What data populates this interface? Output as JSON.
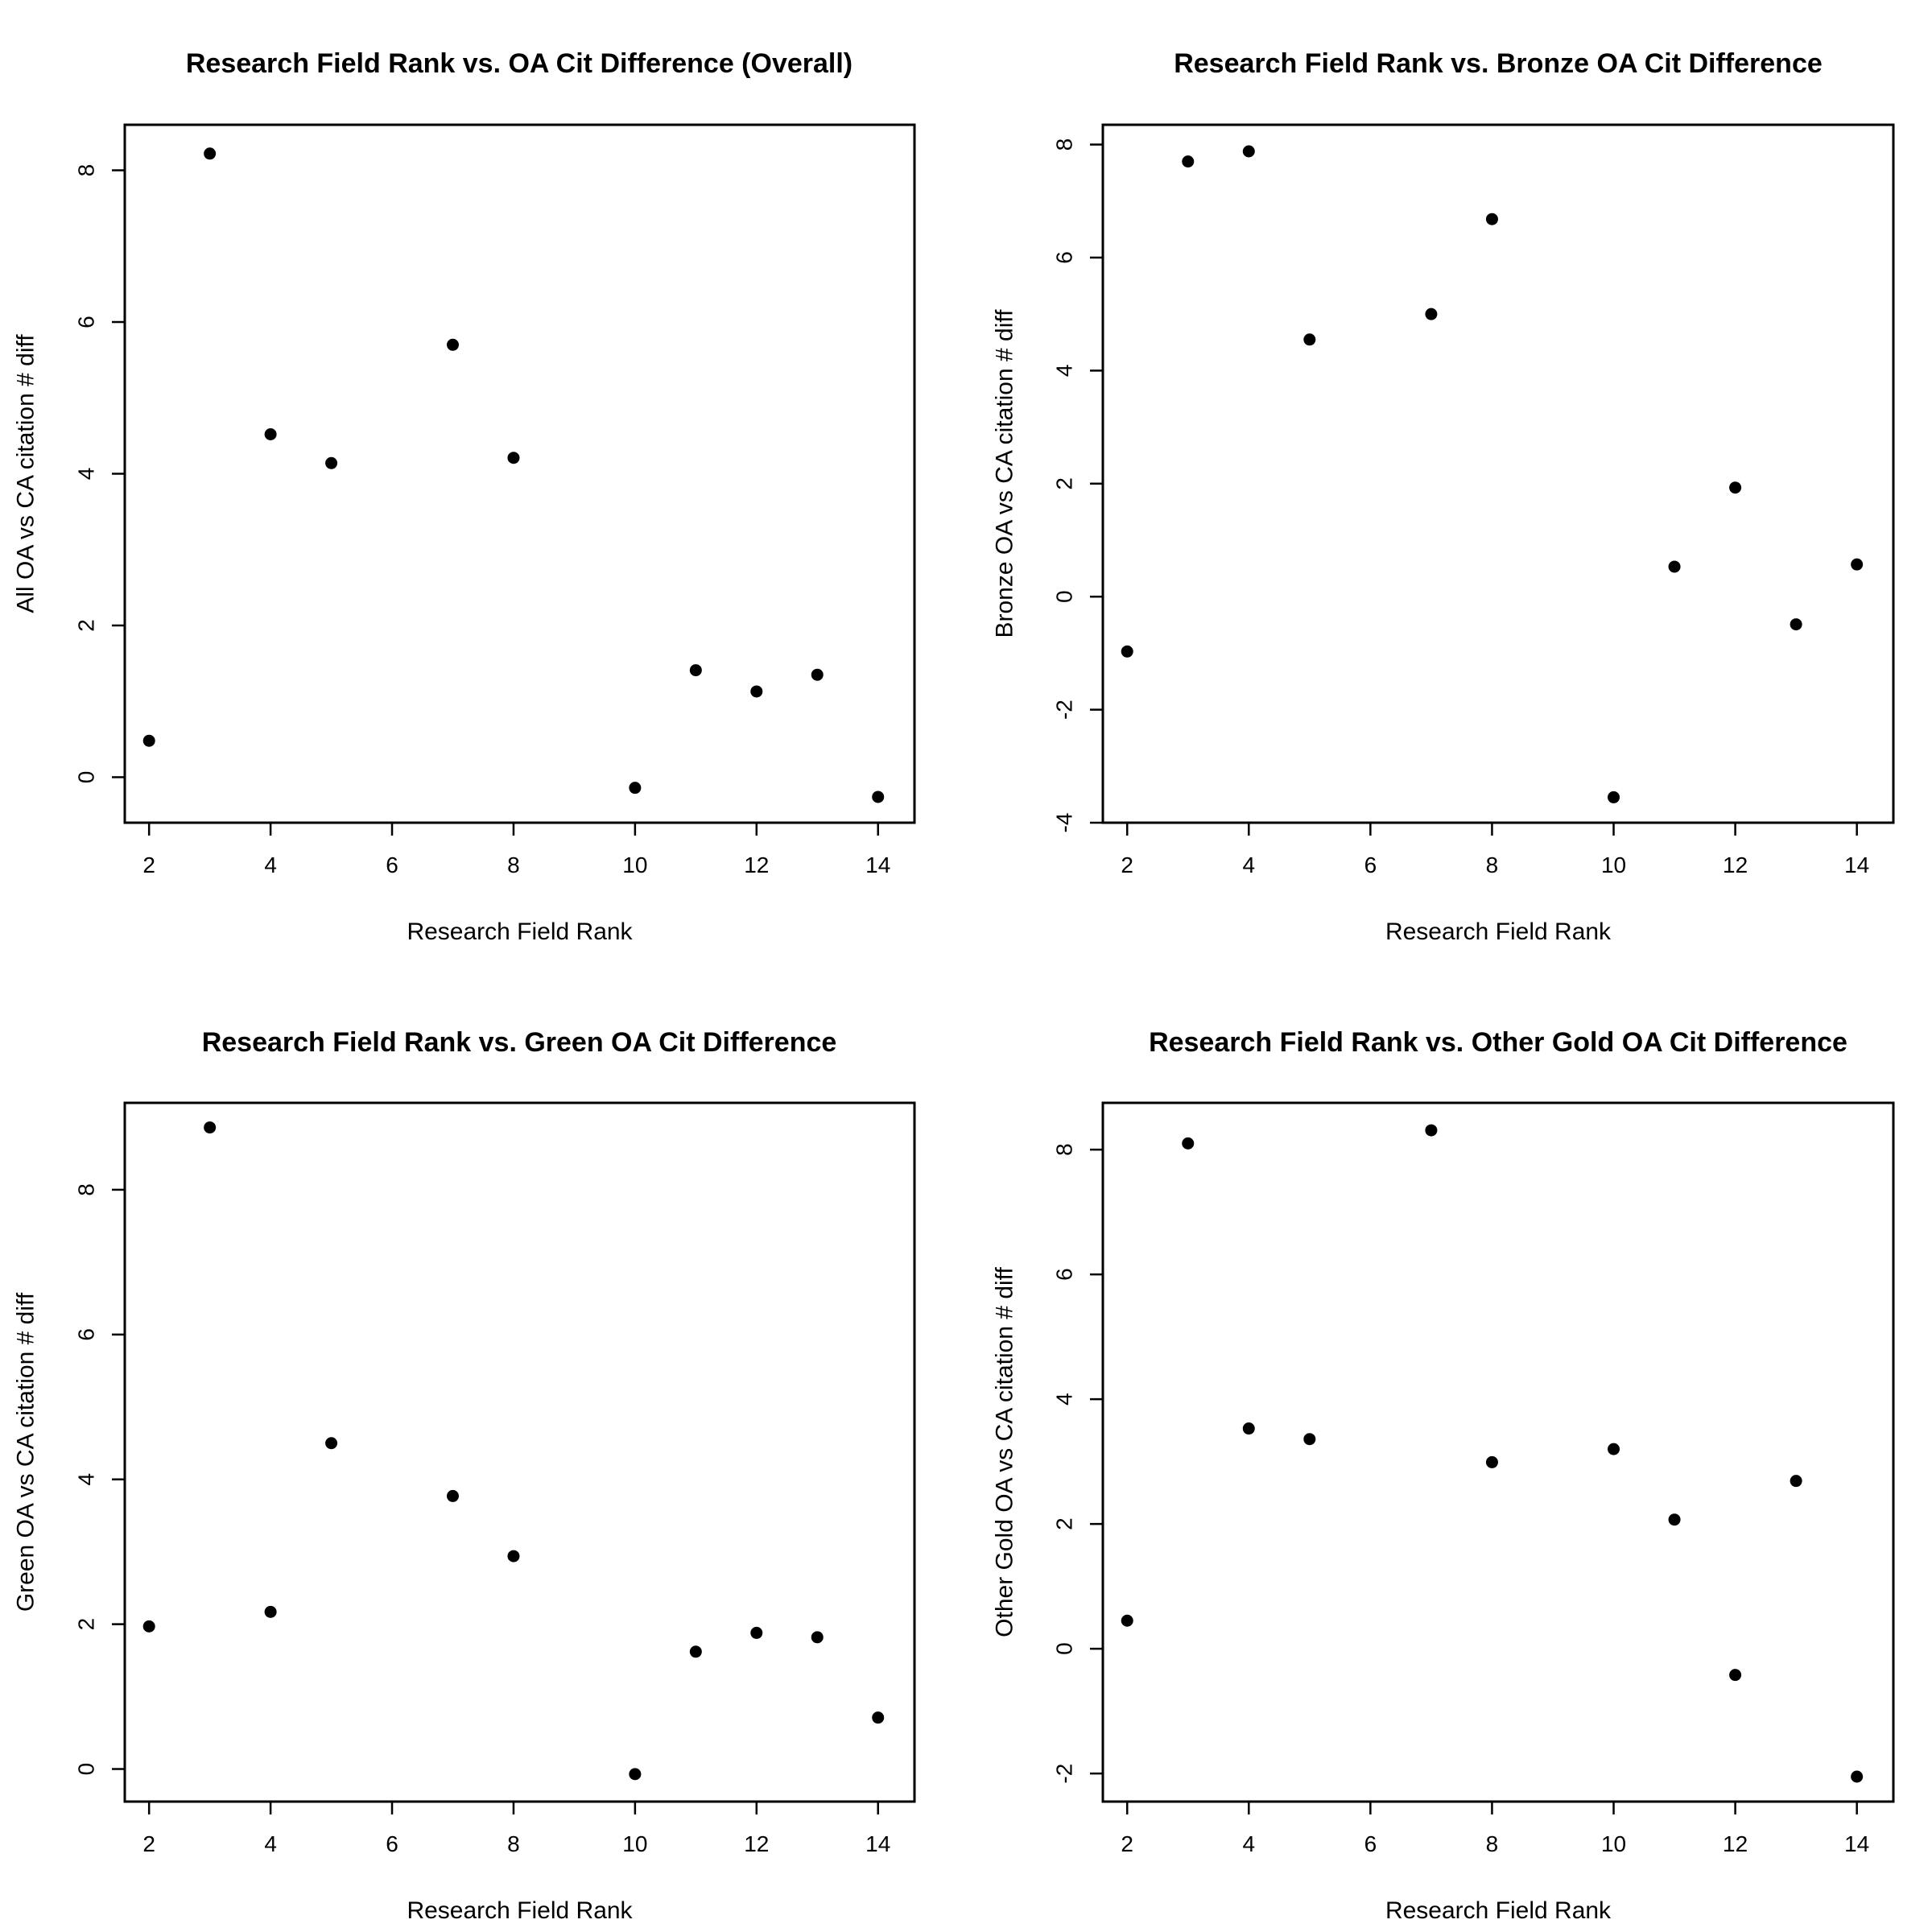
{
  "chart_data": [
    {
      "type": "scatter",
      "title": "Research Field Rank vs. OA Cit Difference (Overall)",
      "xlabel": "Research Field Rank",
      "ylabel": "All OA vs CA citation # diff",
      "xlim": [
        1.6,
        14.6
      ],
      "ylim": [
        -0.6,
        8.6
      ],
      "xticks": [
        2,
        4,
        6,
        8,
        10,
        12,
        14
      ],
      "yticks": [
        0,
        2,
        4,
        6,
        8
      ],
      "x": [
        2,
        3,
        4,
        5,
        7,
        8,
        10,
        11,
        12,
        13,
        14
      ],
      "y": [
        0.48,
        8.22,
        4.52,
        4.14,
        5.7,
        4.21,
        -0.14,
        1.41,
        1.13,
        1.35,
        -0.26
      ]
    },
    {
      "type": "scatter",
      "title": "Research Field Rank vs. Bronze OA Cit Difference",
      "xlabel": "Research Field Rank",
      "ylabel": "Bronze OA vs CA citation # diff",
      "xlim": [
        1.6,
        14.6
      ],
      "ylim": [
        -4.0,
        8.35
      ],
      "xticks": [
        2,
        4,
        6,
        8,
        10,
        12,
        14
      ],
      "yticks": [
        -4,
        -2,
        0,
        2,
        4,
        6,
        8
      ],
      "x": [
        2,
        3,
        4,
        5,
        7,
        8,
        10,
        11,
        12,
        13,
        14
      ],
      "y": [
        -0.97,
        7.7,
        7.88,
        4.55,
        5.0,
        6.68,
        -3.55,
        0.53,
        1.93,
        -0.49,
        0.57
      ]
    },
    {
      "type": "scatter",
      "title": "Research Field Rank vs. Green OA Cit Difference",
      "xlabel": "Research Field Rank",
      "ylabel": "Green OA vs CA citation # diff",
      "xlim": [
        1.6,
        14.6
      ],
      "ylim": [
        -0.45,
        9.2
      ],
      "xticks": [
        2,
        4,
        6,
        8,
        10,
        12,
        14
      ],
      "yticks": [
        0,
        2,
        4,
        6,
        8
      ],
      "x": [
        2,
        3,
        4,
        5,
        7,
        8,
        10,
        11,
        12,
        13,
        14
      ],
      "y": [
        1.97,
        8.86,
        2.17,
        4.5,
        3.77,
        2.94,
        -0.07,
        1.62,
        1.88,
        1.82,
        0.71
      ]
    },
    {
      "type": "scatter",
      "title": "Research Field Rank vs. Other Gold OA Cit Difference",
      "xlabel": "Research Field Rank",
      "ylabel": "Other Gold OA vs CA citation # diff",
      "xlim": [
        1.6,
        14.6
      ],
      "ylim": [
        -2.45,
        8.75
      ],
      "xticks": [
        2,
        4,
        6,
        8,
        10,
        12,
        14
      ],
      "yticks": [
        -2,
        0,
        2,
        4,
        6,
        8
      ],
      "x": [
        2,
        3,
        4,
        5,
        7,
        8,
        10,
        11,
        12,
        13,
        14
      ],
      "y": [
        0.45,
        8.1,
        3.53,
        3.36,
        8.31,
        2.99,
        3.2,
        2.07,
        -0.42,
        2.69,
        -2.05
      ]
    }
  ]
}
